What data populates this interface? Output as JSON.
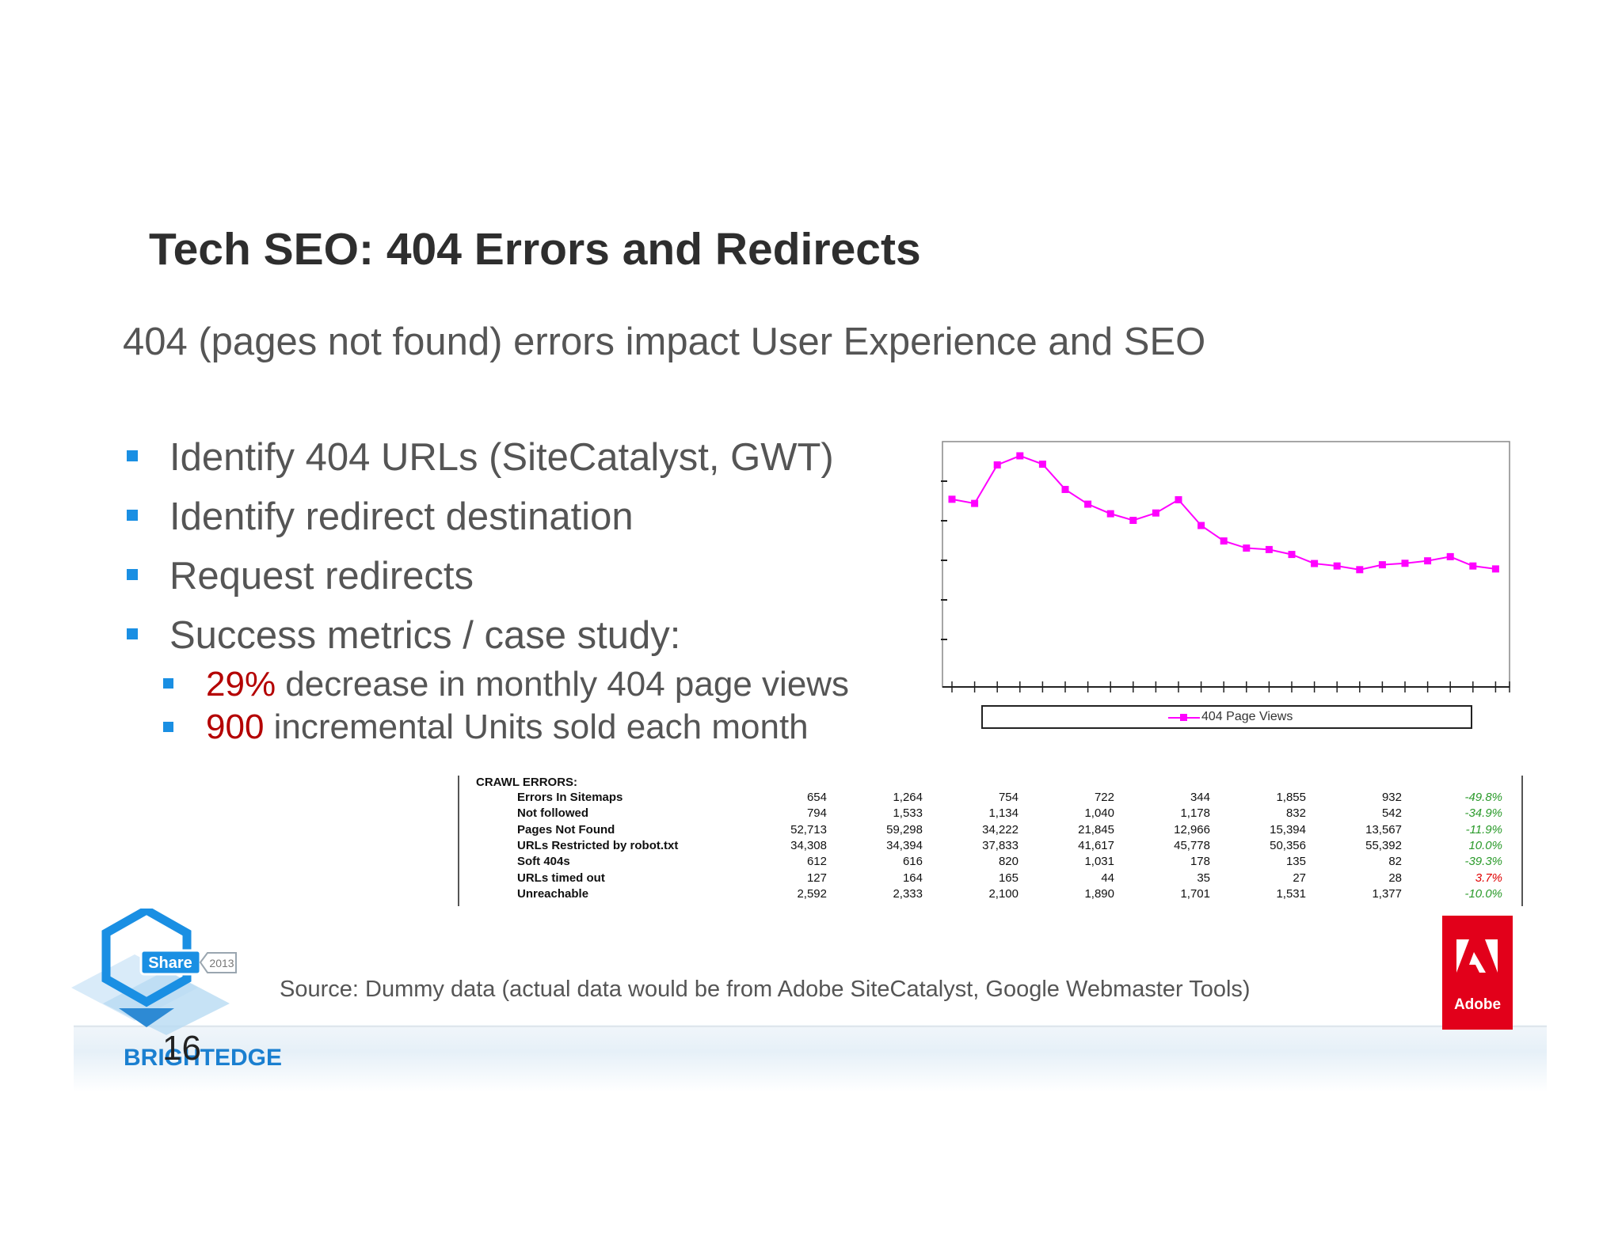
{
  "slide": {
    "title": "Tech SEO: 404 Errors and Redirects",
    "subtitle": "404 (pages not found) errors impact User Experience and SEO",
    "bullets": [
      "Identify 404 URLs (SiteCatalyst, GWT)",
      "Identify redirect destination",
      "Request redirects",
      "Success metrics / case study:"
    ],
    "sub_bullets": [
      {
        "highlight": "29%",
        "text": " decrease in monthly 404 page views"
      },
      {
        "highlight": "900",
        "text": " incremental Units sold each month"
      }
    ],
    "source": "Source: Dummy data (actual data would be from Adobe SiteCatalyst, Google Webmaster Tools)",
    "page_number": "16",
    "accent_color": "#1a8fe3",
    "highlight_color": "#b40000"
  },
  "logos": {
    "share_label": "Share",
    "share_year": "2013",
    "brightedge": "BRIGHTEDGE",
    "adobe": "Adobe"
  },
  "chart_data": {
    "type": "line",
    "title": "",
    "xlabel": "",
    "ylabel": "",
    "legend_placement": "bottom",
    "grid": false,
    "series": [
      {
        "name": "404 Page Views",
        "color": "#ff00ff",
        "values": [
          76.5,
          74.8,
          90.5,
          94.2,
          90.8,
          80.5,
          74.5,
          70.6,
          67.9,
          70.9,
          76.3,
          65.8,
          59.5,
          56.6,
          56.0,
          54.0,
          50.3,
          49.3,
          47.8,
          49.8,
          50.4,
          51.4,
          53.1,
          49.3,
          48.1
        ]
      }
    ],
    "ylim": [
      0,
      100
    ],
    "tick_count": 25
  },
  "crawl_errors": {
    "header": "CRAWL ERRORS:",
    "rows": [
      {
        "name": "Errors In Sitemaps",
        "values": [
          "654",
          "1,264",
          "754",
          "722",
          "344",
          "1,855",
          "932"
        ],
        "change": "-49.8%",
        "change_color": "#2a9a2a"
      },
      {
        "name": "Not followed",
        "values": [
          "794",
          "1,533",
          "1,134",
          "1,040",
          "1,178",
          "832",
          "542"
        ],
        "change": "-34.9%",
        "change_color": "#2a9a2a"
      },
      {
        "name": "Pages Not Found",
        "values": [
          "52,713",
          "59,298",
          "34,222",
          "21,845",
          "12,966",
          "15,394",
          "13,567"
        ],
        "change": "-11.9%",
        "change_color": "#2a9a2a"
      },
      {
        "name": "URLs Restricted by robot.txt",
        "values": [
          "34,308",
          "34,394",
          "37,833",
          "41,617",
          "45,778",
          "50,356",
          "55,392"
        ],
        "change": "10.0%",
        "change_color": "#2a9a2a"
      },
      {
        "name": "Soft 404s",
        "values": [
          "612",
          "616",
          "820",
          "1,031",
          "178",
          "135",
          "82"
        ],
        "change": "-39.3%",
        "change_color": "#2a9a2a"
      },
      {
        "name": "URLs timed out",
        "values": [
          "127",
          "164",
          "165",
          "44",
          "35",
          "27",
          "28"
        ],
        "change": "3.7%",
        "change_color": "#e00000"
      },
      {
        "name": "Unreachable",
        "values": [
          "2,592",
          "2,333",
          "2,100",
          "1,890",
          "1,701",
          "1,531",
          "1,377"
        ],
        "change": "-10.0%",
        "change_color": "#2a9a2a"
      }
    ]
  }
}
